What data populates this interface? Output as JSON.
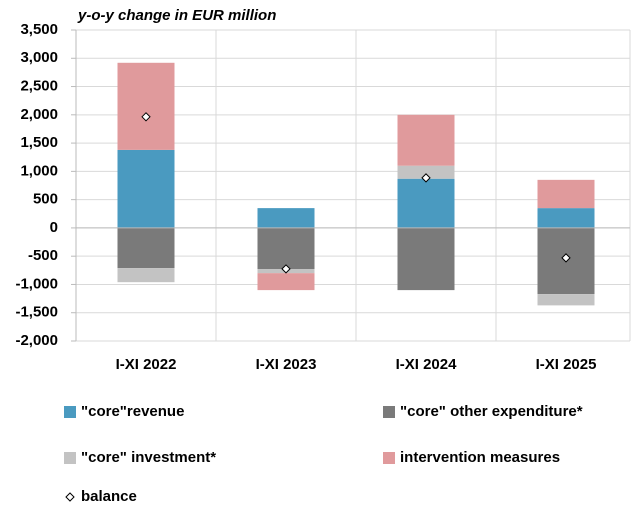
{
  "chart_data": {
    "type": "bar",
    "stacked": true,
    "title": "y-o-y change in EUR million",
    "categories": [
      "I-XI 2022",
      "I-XI 2023",
      "I-XI 2024",
      "I-XI 2025"
    ],
    "series": [
      {
        "name": "\"core\"revenue",
        "color": "#4a9ac0",
        "values": [
          1380,
          350,
          870,
          350
        ]
      },
      {
        "name": "\"core\" other expenditure*",
        "color": "#7a7a7a",
        "values": [
          -710,
          -730,
          -1100,
          -1170
        ]
      },
      {
        "name": "\"core\" investment*",
        "color": "#c3c3c3",
        "values": [
          -250,
          -70,
          230,
          -200
        ]
      },
      {
        "name": "intervention measures",
        "color": "#e09a9c",
        "values": [
          1540,
          -300,
          900,
          500
        ]
      }
    ],
    "balance": {
      "name": "balance",
      "values": [
        1965,
        -725,
        885,
        -530
      ]
    },
    "ylim": [
      -2000,
      3500
    ],
    "yticks": [
      {
        "value": -2000,
        "label": "-2,000"
      },
      {
        "value": -1500,
        "label": "-1,500"
      },
      {
        "value": -1000,
        "label": "-1,000"
      },
      -500,
      0,
      500,
      {
        "value": 1000,
        "label": "1,000"
      },
      {
        "value": 1500,
        "label": "1,500"
      },
      {
        "value": 2000,
        "label": "2,000"
      },
      {
        "value": 2500,
        "label": "2,500"
      },
      {
        "value": 3000,
        "label": "3,000"
      },
      {
        "value": 3500,
        "label": "3,500"
      }
    ],
    "grid": true
  }
}
